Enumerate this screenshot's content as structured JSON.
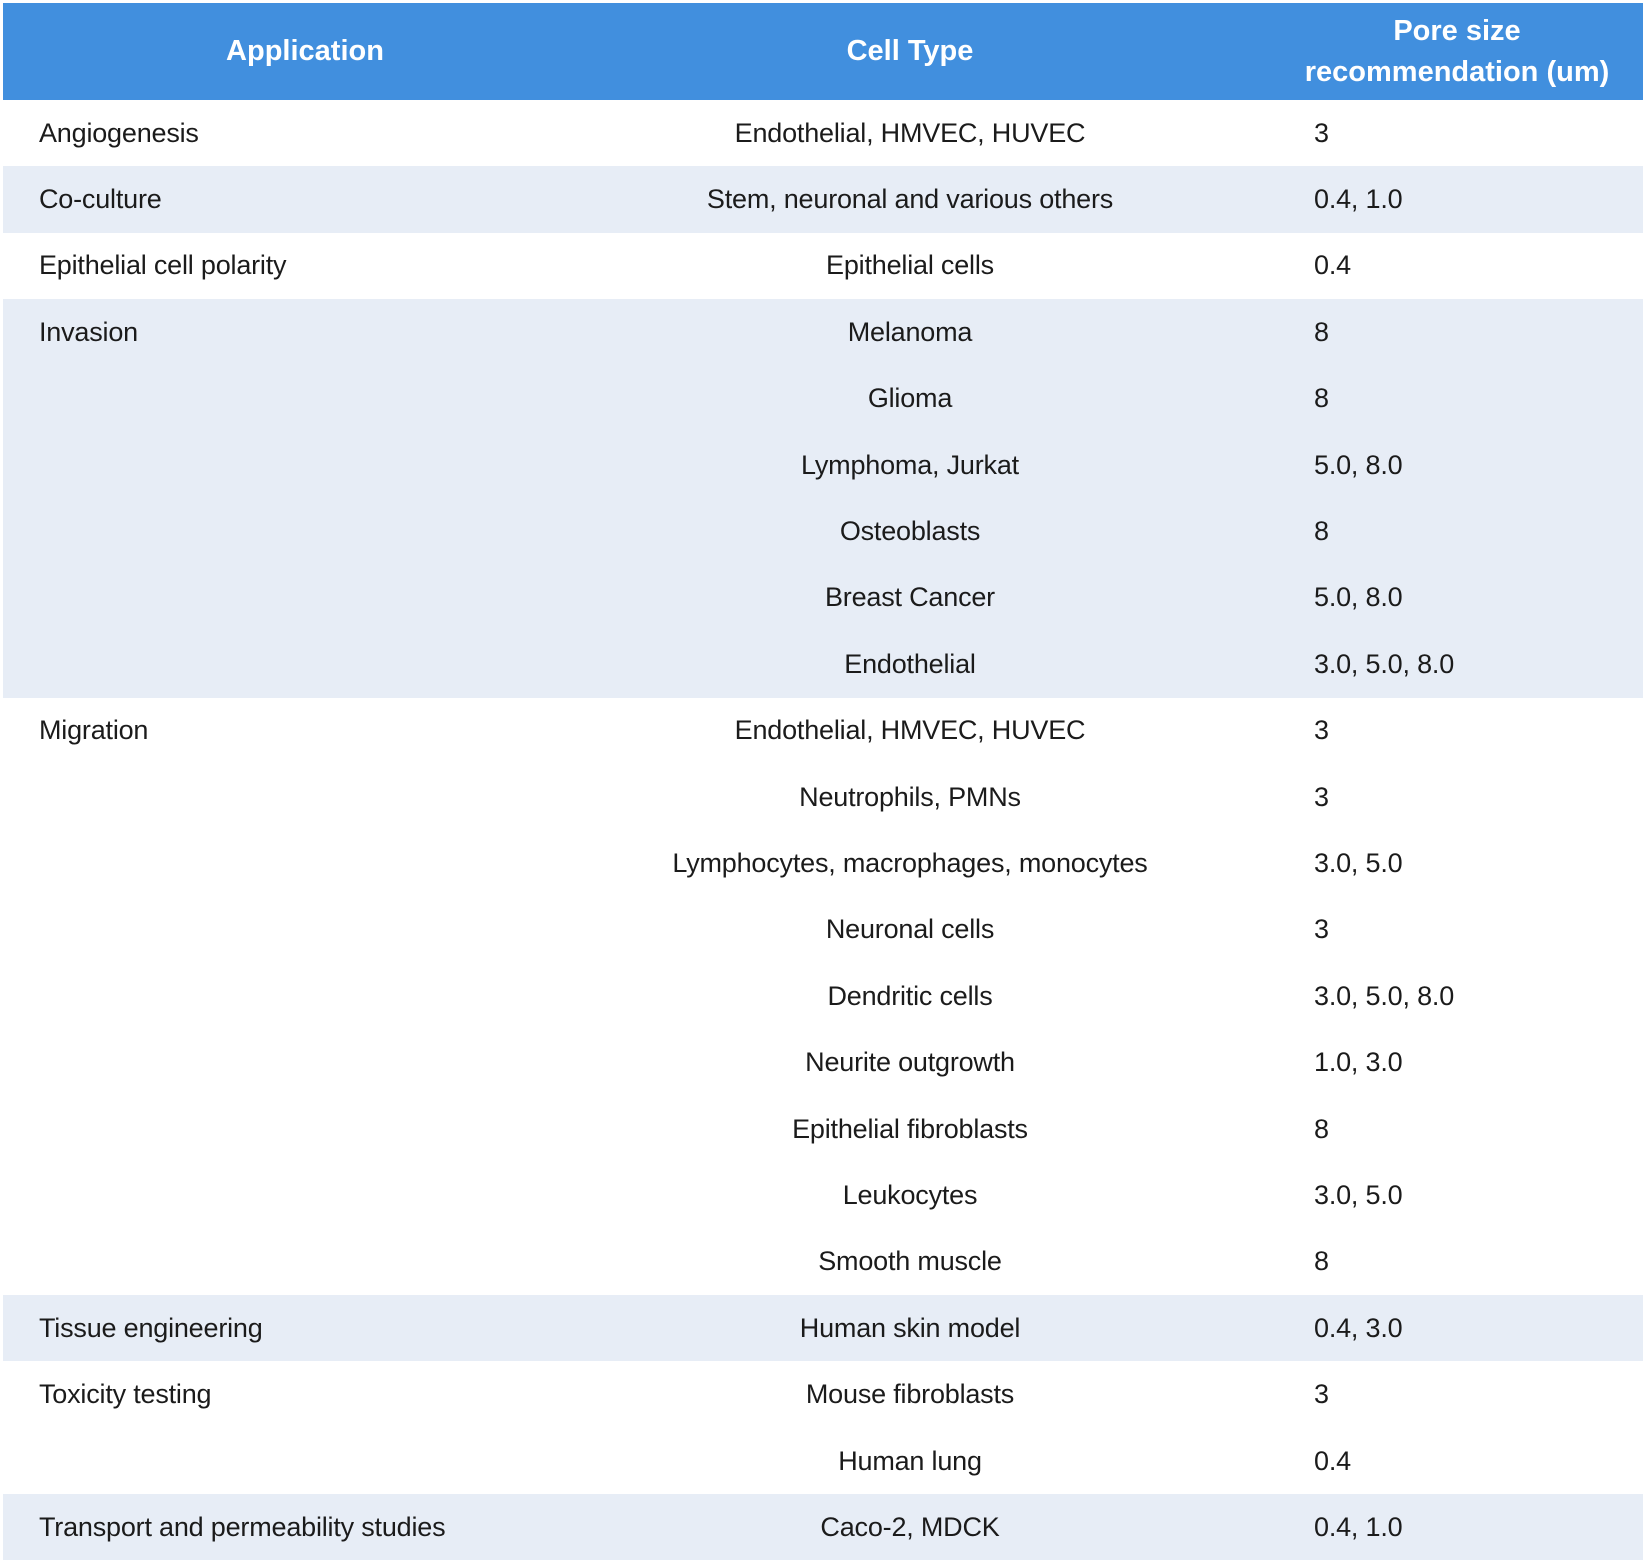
{
  "theme": {
    "header_bg": "#418FDE",
    "header_text": "#FFFFFF",
    "band_light": "#E7EDF6",
    "band_white": "#FFFFFF",
    "body_text": "#1B1B1B"
  },
  "table": {
    "header": {
      "application": "Application",
      "cell_type": "Cell Type",
      "pore_size_line1": "Pore size",
      "pore_size_line2": "recommendation (um)",
      "pore_size_full": "Pore size recommendation (um)"
    },
    "groups": [
      {
        "application": "Angiogenesis",
        "rows": [
          {
            "cell_type": "Endothelial, HMVEC, HUVEC",
            "pore_size": "3"
          }
        ]
      },
      {
        "application": "Co-culture",
        "rows": [
          {
            "cell_type": "Stem, neuronal and various others",
            "pore_size": "0.4, 1.0"
          }
        ]
      },
      {
        "application": "Epithelial cell polarity",
        "rows": [
          {
            "cell_type": "Epithelial cells",
            "pore_size": "0.4"
          }
        ]
      },
      {
        "application": "Invasion",
        "rows": [
          {
            "cell_type": "Melanoma",
            "pore_size": "8"
          },
          {
            "cell_type": "Glioma",
            "pore_size": "8"
          },
          {
            "cell_type": "Lymphoma, Jurkat",
            "pore_size": "5.0, 8.0"
          },
          {
            "cell_type": "Osteoblasts",
            "pore_size": "8"
          },
          {
            "cell_type": "Breast Cancer",
            "pore_size": "5.0, 8.0"
          },
          {
            "cell_type": "Endothelial",
            "pore_size": "3.0, 5.0, 8.0"
          }
        ]
      },
      {
        "application": "Migration",
        "rows": [
          {
            "cell_type": "Endothelial, HMVEC, HUVEC",
            "pore_size": "3"
          },
          {
            "cell_type": "Neutrophils, PMNs",
            "pore_size": "3"
          },
          {
            "cell_type": "Lymphocytes, macrophages, monocytes",
            "pore_size": "3.0, 5.0"
          },
          {
            "cell_type": "Neuronal cells",
            "pore_size": "3"
          },
          {
            "cell_type": "Dendritic cells",
            "pore_size": "3.0, 5.0, 8.0"
          },
          {
            "cell_type": "Neurite outgrowth",
            "pore_size": "1.0, 3.0"
          },
          {
            "cell_type": "Epithelial fibroblasts",
            "pore_size": "8"
          },
          {
            "cell_type": "Leukocytes",
            "pore_size": "3.0, 5.0"
          },
          {
            "cell_type": "Smooth muscle",
            "pore_size": "8"
          }
        ]
      },
      {
        "application": "Tissue engineering",
        "rows": [
          {
            "cell_type": "Human skin model",
            "pore_size": "0.4, 3.0"
          }
        ]
      },
      {
        "application": "Toxicity testing",
        "rows": [
          {
            "cell_type": "Mouse fibroblasts",
            "pore_size": "3"
          },
          {
            "cell_type": "Human lung",
            "pore_size": "0.4"
          }
        ]
      },
      {
        "application": "Transport and permeability studies",
        "rows": [
          {
            "cell_type": "Caco-2, MDCK",
            "pore_size": "0.4, 1.0"
          }
        ]
      }
    ]
  }
}
